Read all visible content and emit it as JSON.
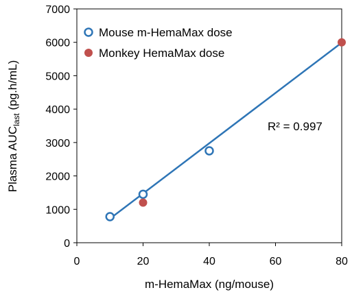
{
  "chart_data": {
    "type": "scatter",
    "title": "",
    "xlabel": "m-HemaMax (ng/mouse)",
    "ylabel": {
      "prefix": "Plasma AUC",
      "subscript": "last",
      "suffix": " (pg.h/mL)"
    },
    "xlim": [
      0,
      80
    ],
    "ylim": [
      0,
      7000
    ],
    "x_ticks": [
      "0",
      "20",
      "40",
      "60",
      "80"
    ],
    "y_ticks": [
      "0",
      "1000",
      "2000",
      "3000",
      "4000",
      "5000",
      "6000",
      "7000"
    ],
    "grid": false,
    "legend_position": "top-left",
    "series": [
      {
        "name": "Mouse m-HemaMax dose",
        "marker": "open-circle",
        "color": "#2E75B6",
        "points": [
          [
            10,
            780
          ],
          [
            20,
            1450
          ],
          [
            40,
            2750
          ]
        ]
      },
      {
        "name": "Monkey HemaMax dose",
        "marker": "filled-circle",
        "color": "#C0504D",
        "points": [
          [
            20,
            1200
          ],
          [
            80,
            6000
          ]
        ]
      }
    ],
    "trendline": {
      "color": "#2E75B6",
      "x": [
        10,
        80
      ],
      "y": [
        720,
        5990
      ]
    },
    "annotation": "R² = 0.997"
  }
}
